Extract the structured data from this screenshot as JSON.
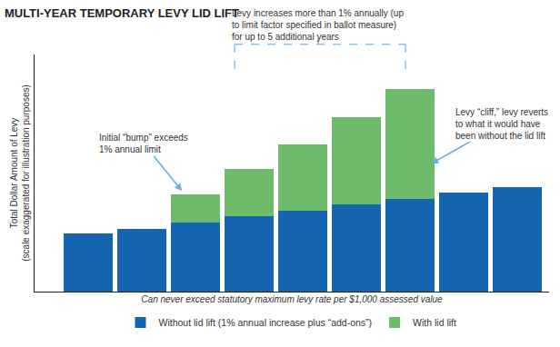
{
  "chart_data": {
    "type": "bar",
    "title": "MULTI-YEAR TEMPORARY LEVY LID LIFT",
    "xlabel": "Can never exceed statutory maximum levy rate per $1,000 assessed value",
    "ylabel": "Total Dollar Amount of Levy\n(scale exaggerated for illustration purposes)",
    "categories": [
      null,
      null,
      null,
      null,
      null,
      null,
      null,
      null,
      null
    ],
    "series": [
      {
        "name": "Without lid lift (1% annual increase plus “add-ons”)",
        "color": "#1565b0",
        "values": [
          68,
          74,
          81,
          88,
          95,
          102,
          109,
          116,
          123
        ]
      },
      {
        "name": "With lid lift",
        "color": "#6dbb6b",
        "values": [
          null,
          null,
          33,
          56,
          78,
          103,
          128,
          null,
          null
        ]
      }
    ],
    "stacked": true,
    "ylim": [
      0,
      278
    ],
    "yticks": [],
    "tick_labels": false,
    "grid": false,
    "legend": "bottom",
    "annotations": [
      {
        "text": "Initial “bump” exceeds\n1% annual limit"
      },
      {
        "text": "Levy increases more than 1% annually (up\nto limit factor specified in ballot measure)\nfor up to 5 additional years"
      },
      {
        "text": "Levy “cliff,” levy reverts\nto what it would have\nbeen without the lid lift"
      }
    ]
  }
}
